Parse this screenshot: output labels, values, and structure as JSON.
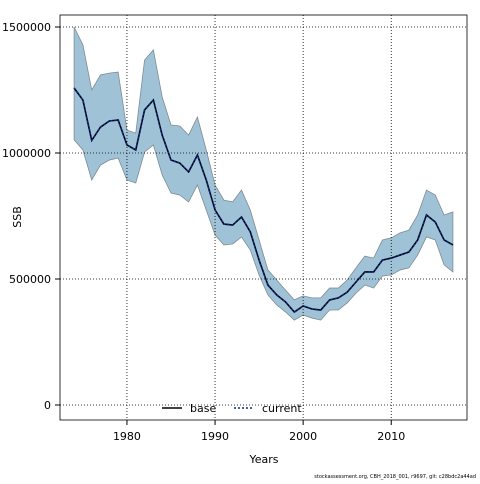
{
  "chart_data": {
    "type": "line",
    "x_label": "Years",
    "y_label": "SSB",
    "footer": "stockassessment.org, CBH_2018_001, r9697, git: c28bdc2a44ad",
    "x": [
      1974,
      1975,
      1976,
      1977,
      1978,
      1979,
      1980,
      1981,
      1982,
      1983,
      1984,
      1985,
      1986,
      1987,
      1988,
      1989,
      1990,
      1991,
      1992,
      1993,
      1994,
      1995,
      1996,
      1997,
      1998,
      1999,
      2000,
      2001,
      2002,
      2003,
      2004,
      2005,
      2006,
      2007,
      2008,
      2009,
      2010,
      2011,
      2012,
      2013,
      2014,
      2015,
      2016,
      2017
    ],
    "series": [
      {
        "name": "base",
        "color": "#000000",
        "dash": "solid",
        "values": [
          1258000,
          1210000,
          1050000,
          1103000,
          1127000,
          1131000,
          1032000,
          1012000,
          1171000,
          1210000,
          1071000,
          972000,
          960000,
          925000,
          992000,
          893000,
          774000,
          718000,
          714000,
          746000,
          687000,
          575000,
          476000,
          437000,
          409000,
          369000,
          393000,
          381000,
          377000,
          417000,
          425000,
          448000,
          488000,
          528000,
          528000,
          575000,
          583000,
          595000,
          607000,
          655000,
          754000,
          726000,
          655000,
          635000
        ]
      },
      {
        "name": "current",
        "color": "#0a2a8a",
        "dash": "dotted",
        "values": [
          1258000,
          1210000,
          1050000,
          1103000,
          1127000,
          1131000,
          1032000,
          1012000,
          1171000,
          1210000,
          1071000,
          972000,
          960000,
          925000,
          992000,
          893000,
          774000,
          718000,
          714000,
          746000,
          687000,
          575000,
          476000,
          437000,
          409000,
          369000,
          393000,
          381000,
          377000,
          417000,
          425000,
          448000,
          488000,
          528000,
          528000,
          575000,
          583000,
          595000,
          607000,
          655000,
          754000,
          726000,
          655000,
          635000
        ]
      }
    ],
    "band": {
      "color": "#9fc2d6",
      "upper": [
        1500000,
        1429000,
        1250000,
        1310000,
        1317000,
        1321000,
        1091000,
        1079000,
        1369000,
        1409000,
        1222000,
        1111000,
        1107000,
        1071000,
        1143000,
        1012000,
        873000,
        813000,
        806000,
        853000,
        774000,
        655000,
        536000,
        496000,
        456000,
        417000,
        433000,
        425000,
        425000,
        464000,
        464000,
        496000,
        544000,
        591000,
        583000,
        655000,
        663000,
        683000,
        694000,
        754000,
        853000,
        833000,
        754000,
        766000
      ],
      "lower": [
        1052000,
        1012000,
        893000,
        952000,
        972000,
        980000,
        893000,
        881000,
        1004000,
        1032000,
        913000,
        841000,
        833000,
        806000,
        873000,
        774000,
        675000,
        635000,
        639000,
        667000,
        615000,
        516000,
        437000,
        397000,
        369000,
        337000,
        357000,
        345000,
        337000,
        377000,
        377000,
        405000,
        444000,
        476000,
        464000,
        512000,
        516000,
        536000,
        544000,
        595000,
        667000,
        655000,
        556000,
        528000
      ]
    },
    "xlim": [
      1972.4,
      2018.6
    ],
    "xticks": [
      1980,
      1990,
      2000,
      2010
    ],
    "ylim": [
      -59500,
      1547600
    ],
    "yticks": [
      0,
      500000,
      1000000,
      1500000
    ],
    "grid": true,
    "legend": "bottom"
  }
}
